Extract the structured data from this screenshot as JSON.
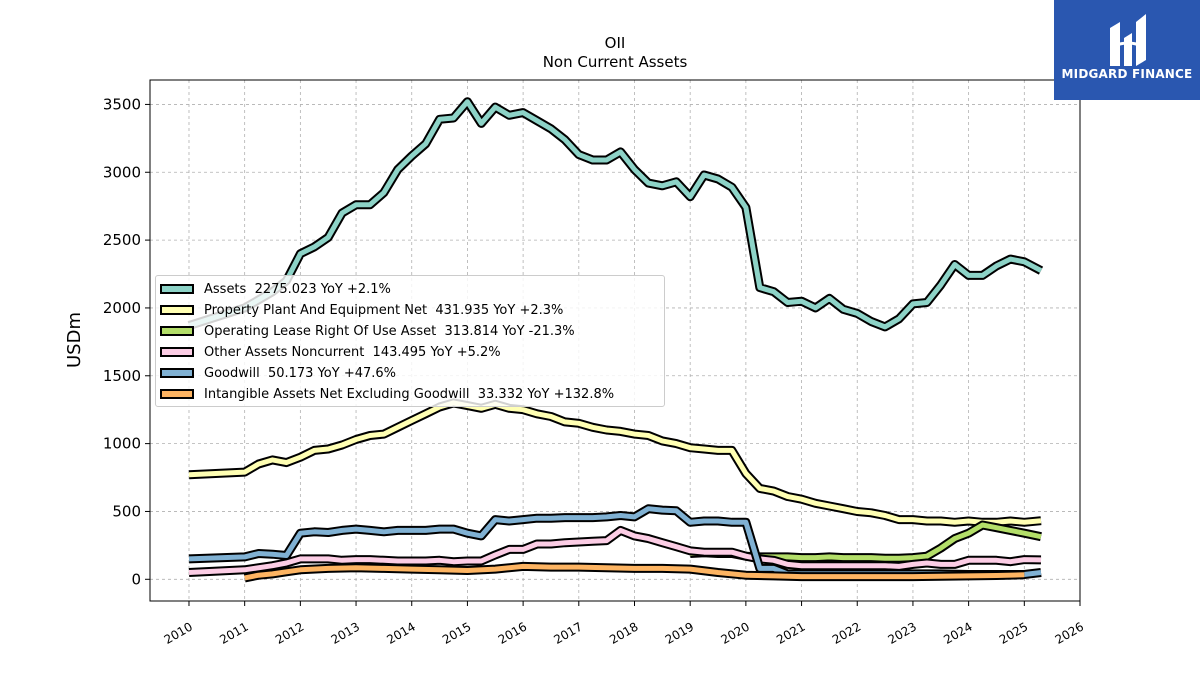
{
  "chart_data": {
    "type": "line",
    "title": "OII",
    "subtitle": "Non Current  Assets",
    "xlabel": "",
    "ylabel": "USDm",
    "xlim": [
      2009.3,
      2026.0
    ],
    "ylim": [
      -160,
      3680
    ],
    "xticks": [
      2010,
      2011,
      2012,
      2013,
      2014,
      2015,
      2016,
      2017,
      2018,
      2019,
      2020,
      2021,
      2022,
      2023,
      2024,
      2025,
      2026
    ],
    "yticks": [
      0,
      500,
      1000,
      1500,
      2000,
      2500,
      3000,
      3500
    ],
    "grid": true,
    "legend_position": "center-left",
    "series": [
      {
        "name": "Assets  2275.023 YoY +2.1%",
        "color": "#8dd3c7",
        "points": [
          [
            2010.0,
            1870
          ],
          [
            2011.0,
            2000
          ],
          [
            2011.5,
            2120
          ],
          [
            2011.75,
            2200
          ],
          [
            2012.0,
            2400
          ],
          [
            2012.25,
            2450
          ],
          [
            2012.5,
            2520
          ],
          [
            2012.75,
            2700
          ],
          [
            2013.0,
            2760
          ],
          [
            2013.25,
            2760
          ],
          [
            2013.5,
            2850
          ],
          [
            2013.75,
            3020
          ],
          [
            2014.0,
            3120
          ],
          [
            2014.25,
            3210
          ],
          [
            2014.5,
            3390
          ],
          [
            2014.75,
            3400
          ],
          [
            2015.0,
            3520
          ],
          [
            2015.25,
            3360
          ],
          [
            2015.5,
            3480
          ],
          [
            2015.75,
            3420
          ],
          [
            2016.0,
            3440
          ],
          [
            2016.25,
            3380
          ],
          [
            2016.5,
            3320
          ],
          [
            2016.75,
            3240
          ],
          [
            2017.0,
            3130
          ],
          [
            2017.25,
            3090
          ],
          [
            2017.5,
            3090
          ],
          [
            2017.75,
            3150
          ],
          [
            2018.0,
            3020
          ],
          [
            2018.25,
            2920
          ],
          [
            2018.5,
            2900
          ],
          [
            2018.75,
            2930
          ],
          [
            2019.0,
            2820
          ],
          [
            2019.25,
            2980
          ],
          [
            2019.5,
            2950
          ],
          [
            2019.75,
            2890
          ],
          [
            2020.0,
            2740
          ],
          [
            2020.25,
            2150
          ],
          [
            2020.5,
            2120
          ],
          [
            2020.75,
            2040
          ],
          [
            2021.0,
            2050
          ],
          [
            2021.25,
            2000
          ],
          [
            2021.5,
            2070
          ],
          [
            2021.75,
            1990
          ],
          [
            2022.0,
            1960
          ],
          [
            2022.25,
            1900
          ],
          [
            2022.5,
            1860
          ],
          [
            2022.75,
            1920
          ],
          [
            2023.0,
            2030
          ],
          [
            2023.25,
            2040
          ],
          [
            2023.5,
            2170
          ],
          [
            2023.75,
            2320
          ],
          [
            2024.0,
            2240
          ],
          [
            2024.25,
            2240
          ],
          [
            2024.5,
            2310
          ],
          [
            2024.75,
            2360
          ],
          [
            2025.0,
            2340
          ],
          [
            2025.3,
            2275
          ]
        ]
      },
      {
        "name": "Property Plant And Equipment Net  431.935 YoY +2.3%",
        "color": "#ffffb3",
        "points": [
          [
            2010.0,
            770
          ],
          [
            2011.0,
            790
          ],
          [
            2011.25,
            850
          ],
          [
            2011.5,
            880
          ],
          [
            2011.75,
            860
          ],
          [
            2012.0,
            900
          ],
          [
            2012.25,
            950
          ],
          [
            2012.5,
            960
          ],
          [
            2012.75,
            990
          ],
          [
            2013.0,
            1030
          ],
          [
            2013.25,
            1060
          ],
          [
            2013.5,
            1070
          ],
          [
            2013.75,
            1120
          ],
          [
            2014.0,
            1170
          ],
          [
            2014.25,
            1220
          ],
          [
            2014.5,
            1270
          ],
          [
            2014.75,
            1300
          ],
          [
            2015.0,
            1280
          ],
          [
            2015.25,
            1260
          ],
          [
            2015.5,
            1290
          ],
          [
            2015.75,
            1260
          ],
          [
            2016.0,
            1250
          ],
          [
            2016.25,
            1220
          ],
          [
            2016.5,
            1200
          ],
          [
            2016.75,
            1160
          ],
          [
            2017.0,
            1150
          ],
          [
            2017.25,
            1120
          ],
          [
            2017.5,
            1100
          ],
          [
            2017.75,
            1090
          ],
          [
            2018.0,
            1070
          ],
          [
            2018.25,
            1060
          ],
          [
            2018.5,
            1020
          ],
          [
            2018.75,
            1000
          ],
          [
            2019.0,
            970
          ],
          [
            2019.25,
            960
          ],
          [
            2019.5,
            950
          ],
          [
            2019.75,
            950
          ],
          [
            2020.0,
            780
          ],
          [
            2020.25,
            670
          ],
          [
            2020.5,
            650
          ],
          [
            2020.75,
            610
          ],
          [
            2021.0,
            590
          ],
          [
            2021.25,
            560
          ],
          [
            2021.5,
            540
          ],
          [
            2021.75,
            520
          ],
          [
            2022.0,
            500
          ],
          [
            2022.25,
            490
          ],
          [
            2022.5,
            470
          ],
          [
            2022.75,
            440
          ],
          [
            2023.0,
            440
          ],
          [
            2023.25,
            430
          ],
          [
            2023.5,
            430
          ],
          [
            2023.75,
            420
          ],
          [
            2024.0,
            430
          ],
          [
            2024.25,
            420
          ],
          [
            2024.5,
            420
          ],
          [
            2024.75,
            430
          ],
          [
            2025.0,
            420
          ],
          [
            2025.3,
            432
          ]
        ]
      },
      {
        "name": "Operating Lease Right Of Use Asset  313.814 YoY -21.3%",
        "color": "#b3de69",
        "points": [
          [
            2019.0,
            190
          ],
          [
            2019.25,
            195
          ],
          [
            2019.5,
            190
          ],
          [
            2019.75,
            190
          ],
          [
            2020.0,
            170
          ],
          [
            2020.25,
            165
          ],
          [
            2020.5,
            165
          ],
          [
            2020.75,
            165
          ],
          [
            2021.0,
            160
          ],
          [
            2021.25,
            160
          ],
          [
            2021.5,
            165
          ],
          [
            2021.75,
            160
          ],
          [
            2022.0,
            160
          ],
          [
            2022.25,
            160
          ],
          [
            2022.5,
            155
          ],
          [
            2022.75,
            155
          ],
          [
            2023.0,
            160
          ],
          [
            2023.25,
            170
          ],
          [
            2023.5,
            230
          ],
          [
            2023.75,
            300
          ],
          [
            2024.0,
            340
          ],
          [
            2024.25,
            400
          ],
          [
            2024.5,
            380
          ],
          [
            2024.75,
            360
          ],
          [
            2025.0,
            340
          ],
          [
            2025.3,
            314
          ]
        ]
      },
      {
        "name": "Other Assets Noncurrent  143.495 YoY +5.2%",
        "color": "#fccde5",
        "points": [
          [
            2010.0,
            50
          ],
          [
            2011.0,
            70
          ],
          [
            2011.5,
            100
          ],
          [
            2011.75,
            120
          ],
          [
            2012.0,
            150
          ],
          [
            2012.25,
            150
          ],
          [
            2012.5,
            150
          ],
          [
            2012.75,
            140
          ],
          [
            2013.0,
            145
          ],
          [
            2013.25,
            145
          ],
          [
            2013.5,
            140
          ],
          [
            2013.75,
            135
          ],
          [
            2014.0,
            135
          ],
          [
            2014.25,
            135
          ],
          [
            2014.5,
            140
          ],
          [
            2014.75,
            130
          ],
          [
            2015.0,
            135
          ],
          [
            2015.25,
            135
          ],
          [
            2015.5,
            180
          ],
          [
            2015.75,
            220
          ],
          [
            2016.0,
            220
          ],
          [
            2016.25,
            260
          ],
          [
            2016.5,
            260
          ],
          [
            2016.75,
            270
          ],
          [
            2017.0,
            275
          ],
          [
            2017.25,
            280
          ],
          [
            2017.5,
            285
          ],
          [
            2017.75,
            360
          ],
          [
            2018.0,
            320
          ],
          [
            2018.25,
            300
          ],
          [
            2018.5,
            270
          ],
          [
            2018.75,
            240
          ],
          [
            2019.0,
            210
          ],
          [
            2019.25,
            200
          ],
          [
            2019.5,
            200
          ],
          [
            2019.75,
            200
          ],
          [
            2020.0,
            170
          ],
          [
            2020.25,
            150
          ],
          [
            2020.5,
            140
          ],
          [
            2020.75,
            110
          ],
          [
            2021.0,
            100
          ],
          [
            2021.25,
            100
          ],
          [
            2021.5,
            100
          ],
          [
            2021.75,
            100
          ],
          [
            2022.0,
            100
          ],
          [
            2022.25,
            100
          ],
          [
            2022.5,
            100
          ],
          [
            2022.75,
            95
          ],
          [
            2023.0,
            110
          ],
          [
            2023.25,
            120
          ],
          [
            2023.5,
            110
          ],
          [
            2023.75,
            110
          ],
          [
            2024.0,
            140
          ],
          [
            2024.25,
            140
          ],
          [
            2024.5,
            140
          ],
          [
            2024.75,
            130
          ],
          [
            2025.0,
            145
          ],
          [
            2025.3,
            143
          ]
        ]
      },
      {
        "name": "Goodwill  50.173 YoY +47.6%",
        "color": "#80b1d3",
        "points": [
          [
            2010.0,
            150
          ],
          [
            2011.0,
            165
          ],
          [
            2011.25,
            190
          ],
          [
            2011.5,
            185
          ],
          [
            2011.75,
            175
          ],
          [
            2012.0,
            340
          ],
          [
            2012.25,
            350
          ],
          [
            2012.5,
            345
          ],
          [
            2012.75,
            360
          ],
          [
            2013.0,
            370
          ],
          [
            2013.25,
            360
          ],
          [
            2013.5,
            350
          ],
          [
            2013.75,
            360
          ],
          [
            2014.0,
            360
          ],
          [
            2014.25,
            360
          ],
          [
            2014.5,
            370
          ],
          [
            2014.75,
            370
          ],
          [
            2015.0,
            340
          ],
          [
            2015.25,
            320
          ],
          [
            2015.5,
            440
          ],
          [
            2015.75,
            430
          ],
          [
            2016.0,
            440
          ],
          [
            2016.25,
            450
          ],
          [
            2016.5,
            450
          ],
          [
            2016.75,
            455
          ],
          [
            2017.0,
            455
          ],
          [
            2017.25,
            455
          ],
          [
            2017.5,
            460
          ],
          [
            2017.75,
            470
          ],
          [
            2018.0,
            460
          ],
          [
            2018.25,
            520
          ],
          [
            2018.5,
            510
          ],
          [
            2018.75,
            505
          ],
          [
            2019.0,
            420
          ],
          [
            2019.25,
            430
          ],
          [
            2019.5,
            430
          ],
          [
            2019.75,
            420
          ],
          [
            2020.0,
            420
          ],
          [
            2020.25,
            80
          ],
          [
            2020.5,
            80
          ],
          [
            2020.75,
            40
          ],
          [
            2021.0,
            40
          ],
          [
            2021.5,
            40
          ],
          [
            2022.0,
            40
          ],
          [
            2022.5,
            40
          ],
          [
            2023.0,
            40
          ],
          [
            2023.5,
            40
          ],
          [
            2024.0,
            35
          ],
          [
            2024.5,
            35
          ],
          [
            2025.0,
            35
          ],
          [
            2025.3,
            50
          ]
        ]
      },
      {
        "name": "Intangible Assets Net Excluding Goodwill  33.332 YoY +132.8%",
        "color": "#fdb462",
        "points": [
          [
            2011.0,
            10
          ],
          [
            2011.25,
            30
          ],
          [
            2011.5,
            40
          ],
          [
            2011.75,
            55
          ],
          [
            2012.0,
            70
          ],
          [
            2012.5,
            80
          ],
          [
            2013.0,
            85
          ],
          [
            2013.5,
            80
          ],
          [
            2014.0,
            75
          ],
          [
            2014.5,
            70
          ],
          [
            2015.0,
            65
          ],
          [
            2015.5,
            75
          ],
          [
            2016.0,
            95
          ],
          [
            2016.5,
            90
          ],
          [
            2017.0,
            90
          ],
          [
            2017.5,
            85
          ],
          [
            2018.0,
            80
          ],
          [
            2018.5,
            80
          ],
          [
            2019.0,
            75
          ],
          [
            2019.5,
            50
          ],
          [
            2020.0,
            30
          ],
          [
            2020.5,
            25
          ],
          [
            2021.0,
            20
          ],
          [
            2021.5,
            20
          ],
          [
            2022.0,
            20
          ],
          [
            2022.5,
            20
          ],
          [
            2023.0,
            20
          ],
          [
            2023.5,
            22
          ],
          [
            2024.0,
            25
          ],
          [
            2024.5,
            28
          ],
          [
            2025.0,
            33
          ]
        ]
      }
    ]
  }
}
